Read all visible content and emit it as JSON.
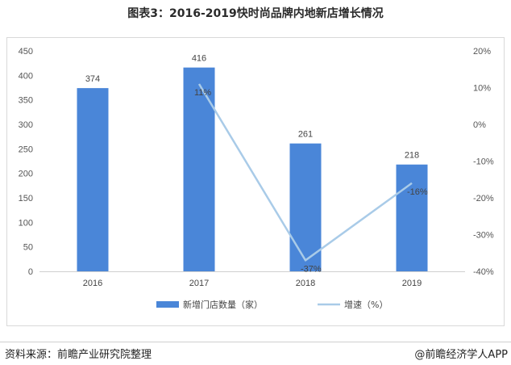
{
  "title": "图表3：2016-2019快时尚品牌内地新店增长情况",
  "footer": {
    "source": "资料来源：前瞻产业研究院整理",
    "credit": "@前瞻经济学人APP"
  },
  "colors": {
    "bar": "#4a86d8",
    "line": "#a9cbe8"
  },
  "chart_data": {
    "type": "bar",
    "categories": [
      "2016",
      "2017",
      "2018",
      "2019"
    ],
    "series": [
      {
        "name": "新增门店数量（家）",
        "type": "bar",
        "axis": "left",
        "values": [
          374,
          416,
          261,
          218
        ],
        "labels": [
          "374",
          "416",
          "261",
          "218"
        ]
      },
      {
        "name": "增速（%）",
        "type": "line",
        "axis": "right",
        "values": [
          null,
          11,
          -37,
          -16
        ],
        "labels": [
          "",
          "11%",
          "-37%",
          "-16%"
        ]
      }
    ],
    "y_left": {
      "min": 0,
      "max": 450,
      "ticks": [
        "0",
        "50",
        "100",
        "150",
        "200",
        "250",
        "300",
        "350",
        "400",
        "450"
      ]
    },
    "y_right": {
      "min": -40,
      "max": 20,
      "ticks": [
        "-40%",
        "-30%",
        "-20%",
        "-10%",
        "0%",
        "10%",
        "20%"
      ]
    },
    "grid": false,
    "legend_position": "bottom"
  }
}
